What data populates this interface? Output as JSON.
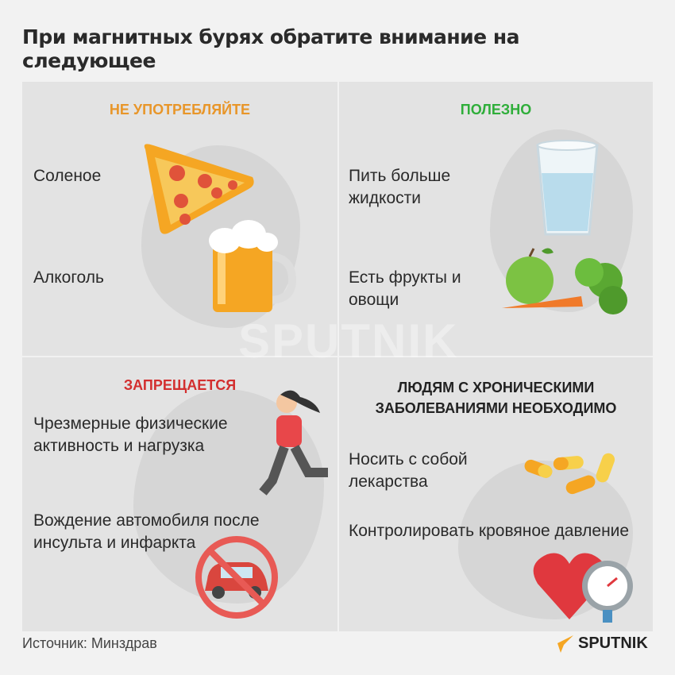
{
  "title": "При магнитных бурях обратите внимание на следующее",
  "panels": {
    "dont_consume": {
      "heading": "НЕ УПОТРЕБЛЯЙТЕ",
      "color": "#e8962a",
      "items": [
        "Соленое",
        "Алкоголь"
      ]
    },
    "useful": {
      "heading": "ПОЛЕЗНО",
      "color": "#2fae3a",
      "items": [
        "Пить больше жидкости",
        "Есть фрукты и овощи"
      ]
    },
    "forbidden": {
      "heading": "ЗАПРЕЩАЕТСЯ",
      "color": "#d32f2f",
      "items": [
        "Чрезмерные физические активность и нагрузка",
        "Вождение автомобиля после инсульта и инфаркта"
      ]
    },
    "chronic": {
      "heading": "ЛЮДЯМ С ХРОНИЧЕСКИМИ ЗАБОЛЕВАНИЯМИ НЕОБХОДИМО",
      "color": "#222222",
      "items": [
        "Носить с собой лекарства",
        "Контролировать кровяное давление"
      ]
    }
  },
  "watermark": "SPUTNIK",
  "source": "Источник: Минздрав",
  "logo": "SPUTNIK"
}
